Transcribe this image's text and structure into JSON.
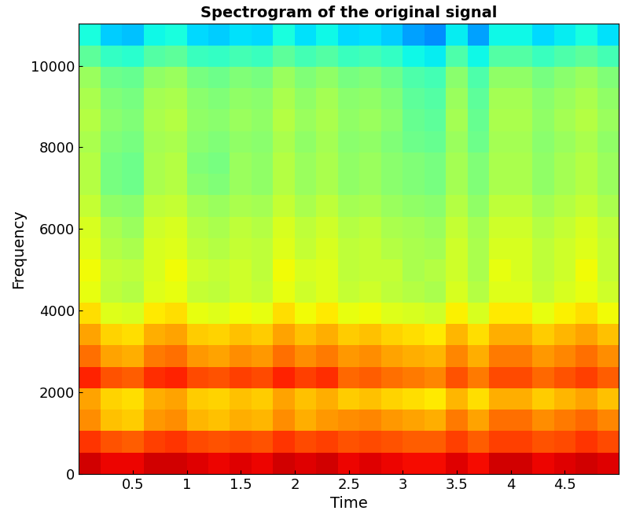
{
  "chart_data": {
    "type": "heatmap",
    "title": "Spectrogram of the original signal",
    "x_label": "Time",
    "y_label": "Frequency",
    "x": [
      0.1,
      0.3,
      0.5,
      0.7,
      0.9,
      1.1,
      1.3,
      1.5,
      1.7,
      1.9,
      2.1,
      2.3,
      2.5,
      2.7,
      2.9,
      3.1,
      3.3,
      3.5,
      3.7,
      3.9,
      4.1,
      4.3,
      4.5,
      4.7,
      4.9
    ],
    "y": [
      262.5,
      787.5,
      1312.5,
      1837.5,
      2362.5,
      2887.5,
      3412.5,
      3937.5,
      4462.5,
      4987.5,
      5512.5,
      6037.5,
      6562.5,
      7087.5,
      7612.5,
      8137.5,
      8662.5,
      9187.5,
      9712.5,
      10237.5,
      10762.5
    ],
    "cells": [
      [
        93,
        91,
        91,
        93,
        93,
        92,
        91,
        92,
        91,
        93,
        92,
        93,
        91,
        92,
        91,
        90,
        90,
        92,
        90,
        93,
        93,
        91,
        92,
        93,
        92
      ],
      [
        86,
        83,
        82,
        85,
        86,
        84,
        83,
        84,
        83,
        86,
        84,
        85,
        83,
        84,
        83,
        82,
        82,
        85,
        82,
        85,
        85,
        83,
        84,
        86,
        84
      ],
      [
        77,
        72,
        71,
        76,
        77,
        73,
        72,
        74,
        73,
        77,
        74,
        76,
        77,
        78,
        76,
        75,
        74,
        79,
        75,
        80,
        80,
        77,
        79,
        81,
        78
      ],
      [
        75,
        70,
        69,
        74,
        75,
        71,
        70,
        72,
        71,
        75,
        72,
        74,
        71,
        72,
        70,
        69,
        68,
        73,
        69,
        74,
        74,
        71,
        73,
        75,
        72
      ],
      [
        88,
        83,
        82,
        87,
        88,
        84,
        83,
        85,
        84,
        88,
        85,
        87,
        81,
        82,
        80,
        79,
        78,
        83,
        79,
        84,
        84,
        81,
        83,
        85,
        82
      ],
      [
        80,
        75,
        74,
        79,
        80,
        76,
        75,
        77,
        76,
        80,
        77,
        79,
        76,
        77,
        75,
        74,
        73,
        78,
        74,
        79,
        79,
        76,
        78,
        80,
        77
      ],
      [
        75,
        70,
        69,
        74,
        75,
        71,
        70,
        72,
        71,
        75,
        72,
        74,
        71,
        72,
        70,
        69,
        68,
        73,
        69,
        74,
        74,
        71,
        73,
        75,
        72
      ],
      [
        69,
        64,
        63,
        68,
        69,
        65,
        64,
        66,
        65,
        69,
        66,
        68,
        65,
        66,
        64,
        63,
        62,
        67,
        63,
        68,
        68,
        65,
        67,
        69,
        66
      ],
      [
        65,
        60,
        59,
        64,
        65,
        61,
        60,
        62,
        61,
        65,
        62,
        64,
        61,
        62,
        60,
        59,
        58,
        63,
        59,
        64,
        64,
        61,
        63,
        65,
        62
      ],
      [
        66,
        61,
        60,
        63,
        66,
        62,
        61,
        62,
        60,
        66,
        63,
        64,
        60,
        61,
        61,
        58,
        59,
        62,
        58,
        65,
        63,
        60,
        62,
        66,
        61
      ],
      [
        64,
        59,
        58,
        63,
        64,
        60,
        59,
        61,
        60,
        64,
        61,
        63,
        60,
        61,
        59,
        58,
        57,
        62,
        58,
        63,
        63,
        60,
        62,
        64,
        61
      ],
      [
        63,
        58,
        56,
        62,
        63,
        59,
        58,
        60,
        59,
        63,
        60,
        62,
        59,
        60,
        58,
        57,
        56,
        61,
        57,
        62,
        62,
        59,
        61,
        63,
        60
      ],
      [
        61,
        55,
        54,
        60,
        61,
        57,
        56,
        58,
        57,
        61,
        58,
        60,
        57,
        58,
        56,
        55,
        54,
        59,
        55,
        60,
        60,
        57,
        59,
        61,
        58
      ],
      [
        59,
        52,
        51,
        58,
        59,
        54,
        53,
        56,
        55,
        59,
        56,
        58,
        55,
        56,
        54,
        53,
        52,
        57,
        53,
        58,
        58,
        55,
        57,
        59,
        56
      ],
      [
        59,
        52,
        51,
        58,
        59,
        53,
        52,
        56,
        55,
        59,
        56,
        58,
        55,
        56,
        54,
        53,
        52,
        57,
        53,
        58,
        58,
        55,
        57,
        59,
        56
      ],
      [
        58,
        53,
        52,
        57,
        58,
        54,
        53,
        55,
        54,
        58,
        55,
        57,
        54,
        55,
        53,
        51,
        50,
        56,
        51,
        57,
        57,
        54,
        56,
        58,
        55
      ],
      [
        59,
        54,
        53,
        58,
        59,
        55,
        54,
        56,
        55,
        59,
        56,
        58,
        55,
        56,
        54,
        50,
        49,
        57,
        50,
        58,
        58,
        55,
        57,
        59,
        56
      ],
      [
        58,
        53,
        52,
        57,
        58,
        54,
        53,
        55,
        54,
        58,
        55,
        57,
        54,
        55,
        53,
        49,
        48,
        56,
        49,
        57,
        57,
        54,
        56,
        58,
        55
      ],
      [
        56,
        51,
        50,
        55,
        56,
        52,
        51,
        53,
        52,
        56,
        53,
        55,
        52,
        53,
        51,
        47,
        46,
        54,
        47,
        55,
        55,
        52,
        54,
        56,
        53
      ],
      [
        49,
        44,
        43,
        48,
        49,
        45,
        44,
        46,
        45,
        49,
        46,
        48,
        45,
        46,
        44,
        40,
        39,
        47,
        40,
        48,
        48,
        45,
        47,
        49,
        46
      ],
      [
        41,
        36,
        35,
        40,
        41,
        37,
        36,
        38,
        37,
        41,
        38,
        40,
        37,
        38,
        36,
        32,
        30,
        39,
        32,
        40,
        40,
        37,
        39,
        41,
        38
      ]
    ],
    "clim": [
      5,
      100
    ],
    "xlim": [
      0,
      5
    ],
    "xticks": [
      0.5,
      1,
      1.5,
      2,
      2.5,
      3,
      3.5,
      4,
      4.5
    ],
    "ylim": [
      0,
      11025
    ],
    "yticks": [
      0,
      2000,
      4000,
      6000,
      8000,
      10000
    ]
  }
}
